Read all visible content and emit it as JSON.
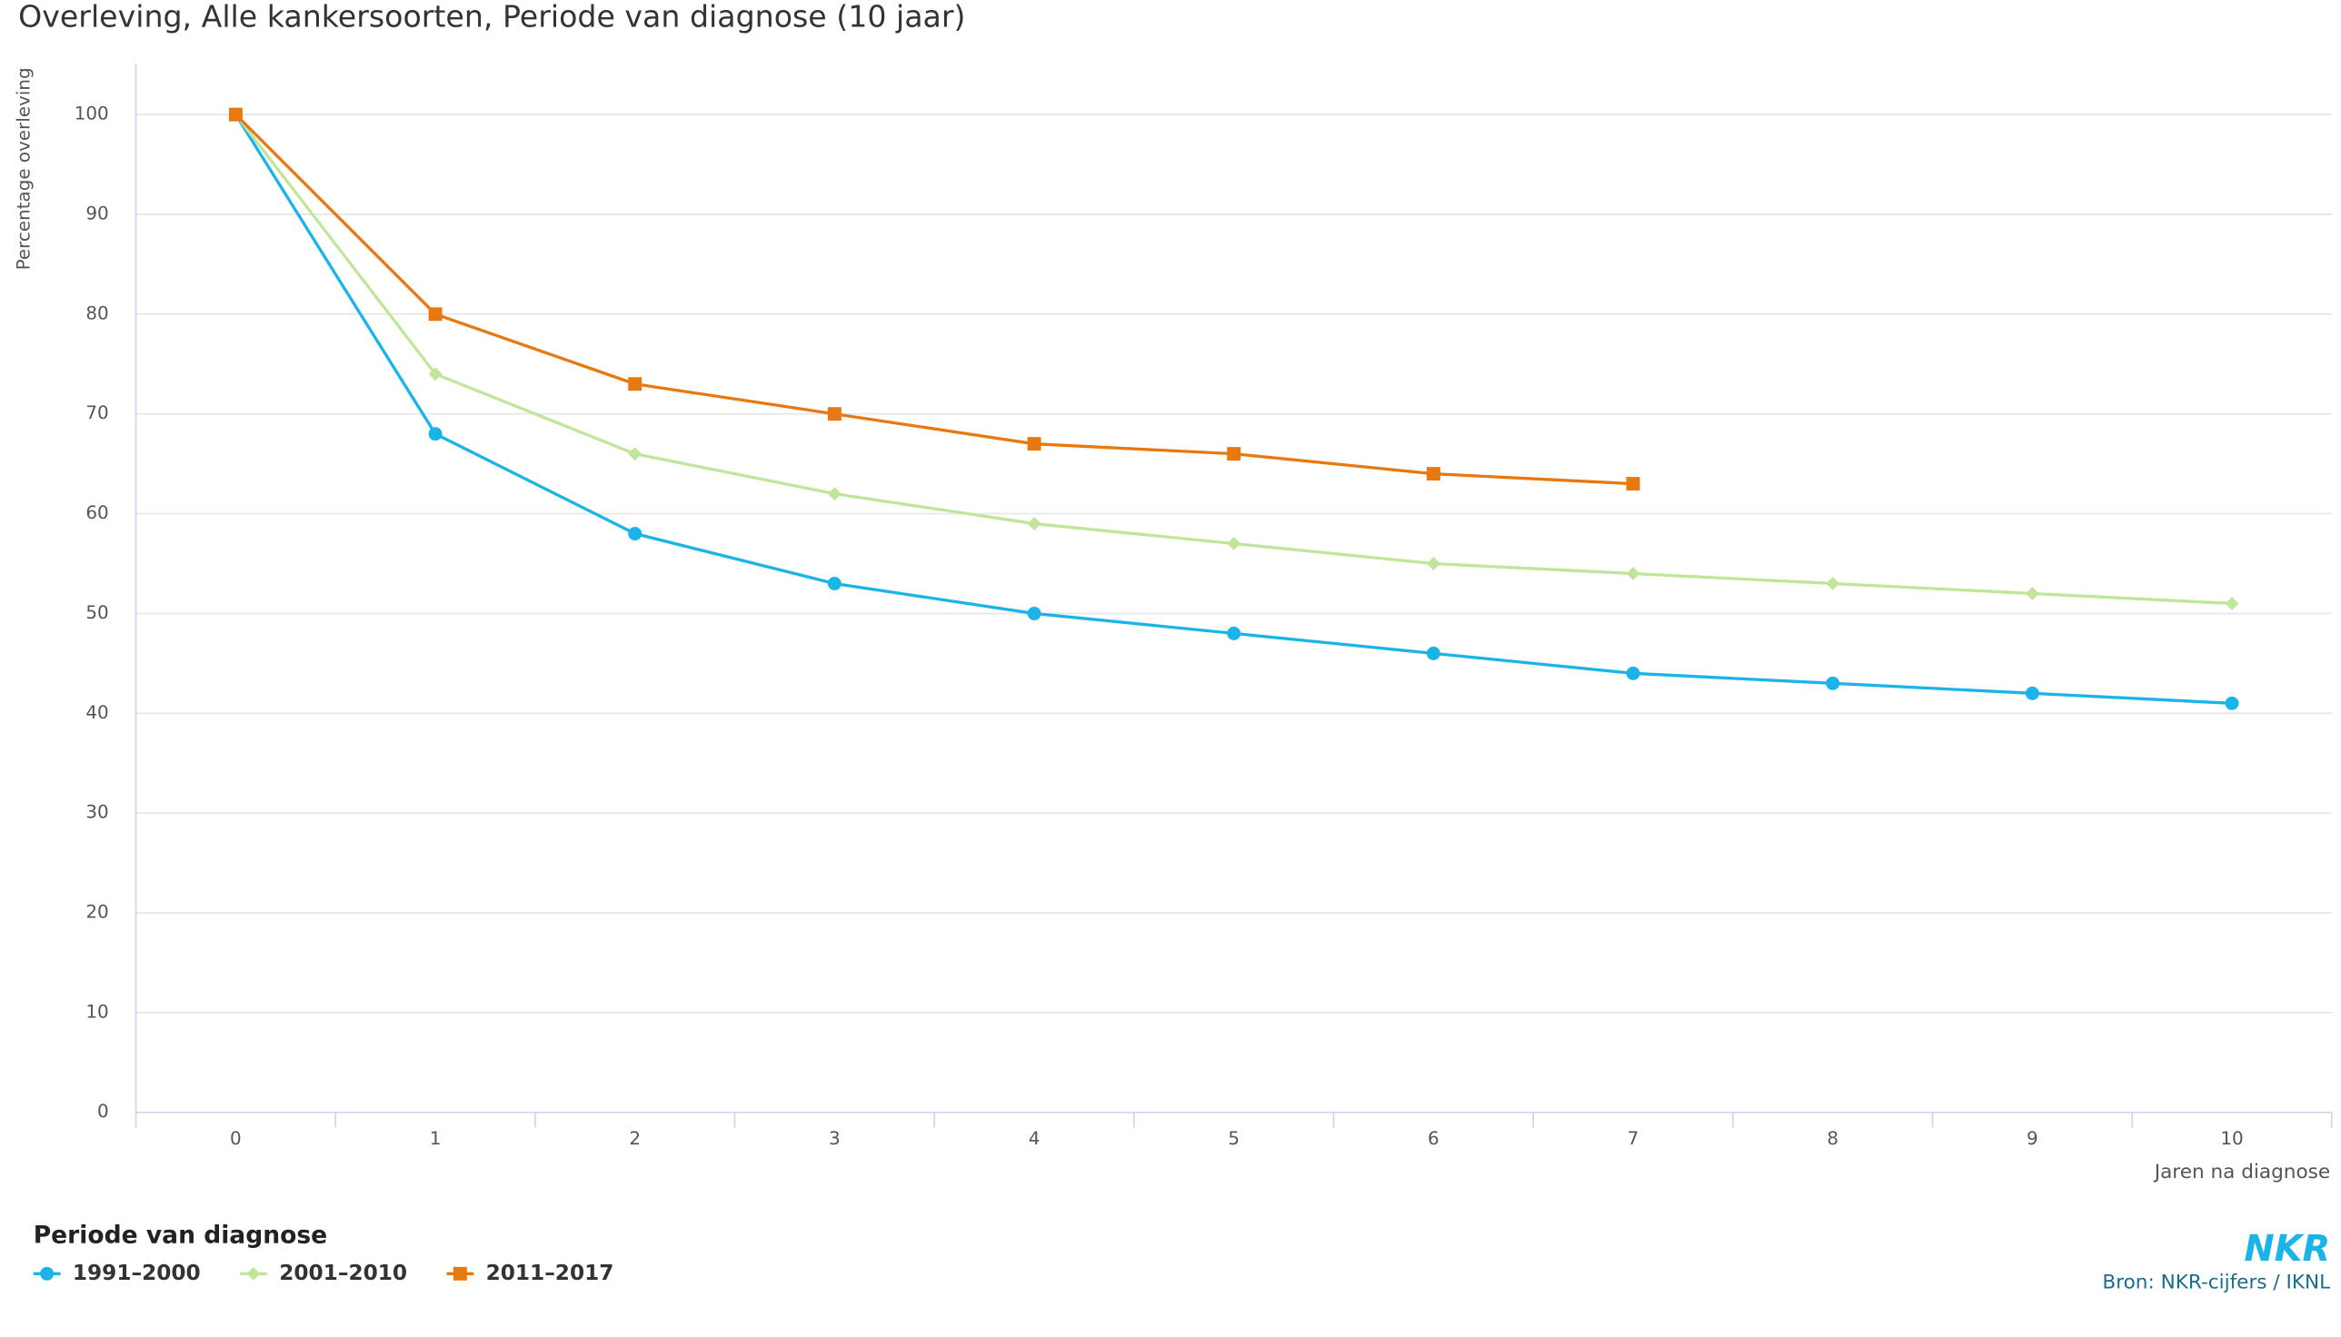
{
  "chart_data": {
    "type": "line",
    "title": "Overleving, Alle kankersoorten, Periode van diagnose (10 jaar)",
    "y_label": "Percentage overleving",
    "x_label": "Jaren na diagnose",
    "categories": [
      "0",
      "1",
      "2",
      "3",
      "4",
      "5",
      "6",
      "7",
      "8",
      "9",
      "10"
    ],
    "series": [
      {
        "name": "1991–2000",
        "color": "#1ab4e8",
        "marker": "circle",
        "values": [
          100,
          68,
          58,
          53,
          50,
          48,
          46,
          44,
          43,
          42,
          41
        ]
      },
      {
        "name": "2001–2010",
        "color": "#c2e59c",
        "marker": "diamond",
        "values": [
          100,
          74,
          66,
          62,
          59,
          57,
          55,
          54,
          53,
          52,
          51
        ]
      },
      {
        "name": "2011–2017",
        "color": "#e8780f",
        "marker": "square",
        "values": [
          100,
          80,
          73,
          70,
          67,
          66,
          64,
          63,
          null,
          null,
          null
        ]
      }
    ],
    "ylim": [
      0,
      100
    ],
    "yticks": [
      0,
      10,
      20,
      30,
      40,
      50,
      60,
      70,
      80,
      90,
      100
    ],
    "grid": true,
    "legend_title": "Periode van diagnose",
    "logo": "NKR",
    "source": "Bron: NKR-cijfers / IKNL"
  }
}
